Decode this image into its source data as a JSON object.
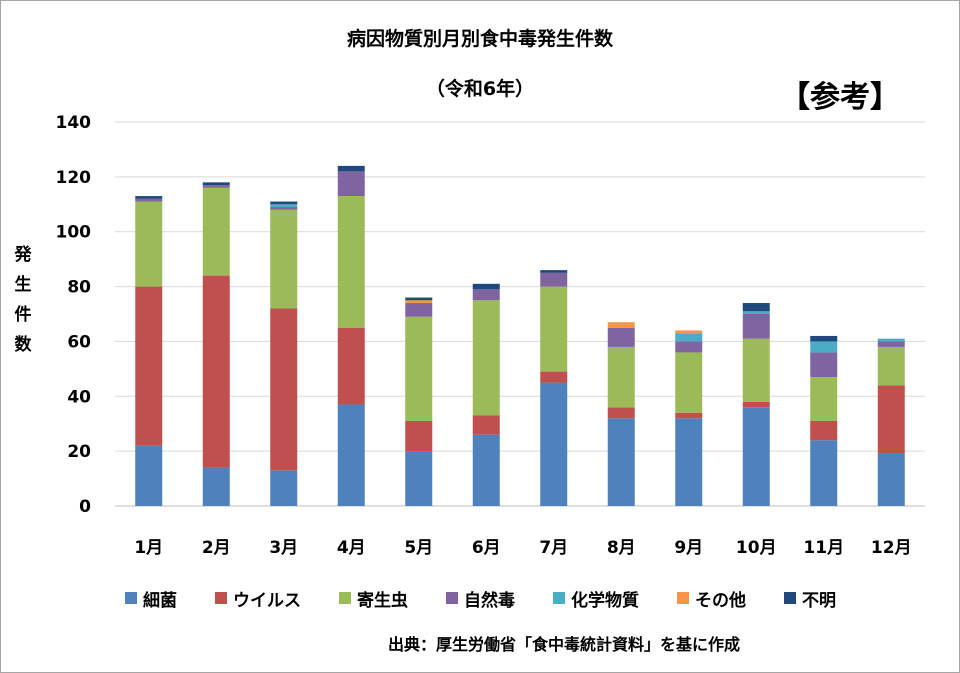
{
  "chart_data": {
    "type": "bar",
    "stacked": true,
    "title": "病因物質別月別食中毒発生件数",
    "subtitle": "（令和6年）",
    "badge": "【参考】",
    "ylabel": "発生件数",
    "ylabel_chars": [
      "発",
      "生",
      "件",
      "数"
    ],
    "ylim": [
      0,
      140
    ],
    "yticks": [
      0,
      20,
      40,
      60,
      80,
      100,
      120,
      140
    ],
    "grid": true,
    "legend_position": "bottom",
    "categories": [
      "1月",
      "2月",
      "3月",
      "4月",
      "5月",
      "6月",
      "7月",
      "8月",
      "9月",
      "10月",
      "11月",
      "12月"
    ],
    "series": [
      {
        "name": "細菌",
        "color": "#4f81bd",
        "values": [
          22,
          14,
          13,
          37,
          20,
          26,
          45,
          32,
          32,
          36,
          24,
          19
        ]
      },
      {
        "name": "ウイルス",
        "color": "#c0504d",
        "values": [
          58,
          70,
          59,
          28,
          11,
          7,
          4,
          4,
          2,
          2,
          7,
          25
        ]
      },
      {
        "name": "寄生虫",
        "color": "#9bbb59",
        "values": [
          31,
          32,
          36,
          48,
          38,
          42,
          31,
          22,
          22,
          23,
          16,
          14
        ]
      },
      {
        "name": "自然毒",
        "color": "#8064a2",
        "values": [
          1,
          1,
          1,
          9,
          5,
          4,
          5,
          7,
          4,
          9,
          9,
          2
        ]
      },
      {
        "name": "化学物質",
        "color": "#4bacc6",
        "values": [
          0,
          0,
          1,
          0,
          0,
          0,
          0,
          0,
          3,
          1,
          4,
          1
        ]
      },
      {
        "name": "その他",
        "color": "#f79646",
        "values": [
          0,
          0,
          0,
          0,
          1,
          0,
          0,
          2,
          1,
          0,
          0,
          0
        ]
      },
      {
        "name": "不明",
        "color": "#1f497d",
        "values": [
          1,
          1,
          1,
          2,
          1,
          2,
          1,
          0,
          0,
          3,
          2,
          0
        ]
      }
    ],
    "source": "出典：厚生労働省「食中毒統計資料」を基に作成"
  }
}
